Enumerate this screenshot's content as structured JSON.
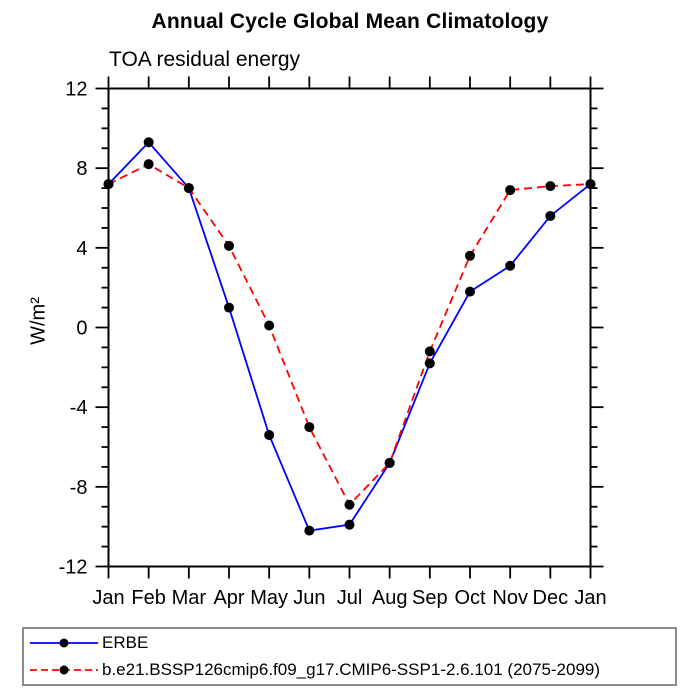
{
  "title": "Annual Cycle Global Mean Climatology",
  "subtitle": "TOA residual energy",
  "y_axis_label": "W/m²",
  "chart_data": {
    "type": "line",
    "title": "Annual Cycle Global Mean Climatology",
    "subtitle": "TOA residual energy",
    "xlabel": "",
    "ylabel": "W/m²",
    "categories": [
      "Jan",
      "Feb",
      "Mar",
      "Apr",
      "May",
      "Jun",
      "Jul",
      "Aug",
      "Sep",
      "Oct",
      "Nov",
      "Dec",
      "Jan"
    ],
    "ylim": [
      -12,
      12
    ],
    "y_major_ticks": [
      -12,
      -8,
      -4,
      0,
      4,
      8,
      12
    ],
    "y_minor_step": 1,
    "grid": false,
    "legend_position": "bottom-left",
    "axis_color": "#000000",
    "marker_color": "#000000",
    "series": [
      {
        "name": "ERBE",
        "color": "#0000ff",
        "line_style": "solid",
        "marker": "filled-circle",
        "values": [
          7.2,
          9.3,
          7.0,
          1.0,
          -5.4,
          -10.2,
          -9.9,
          -6.8,
          -1.8,
          1.8,
          3.1,
          5.6,
          7.2
        ]
      },
      {
        "name": "b.e21.BSSP126cmip6.f09_g17.CMIP6-SSP1-2.6.101 (2075-2099)",
        "color": "#ff0000",
        "line_style": "dashed",
        "marker": "filled-circle",
        "values": [
          7.2,
          8.2,
          7.0,
          4.1,
          0.1,
          -5.0,
          -8.9,
          -6.8,
          -1.2,
          3.6,
          6.9,
          7.1,
          7.2
        ]
      }
    ]
  }
}
